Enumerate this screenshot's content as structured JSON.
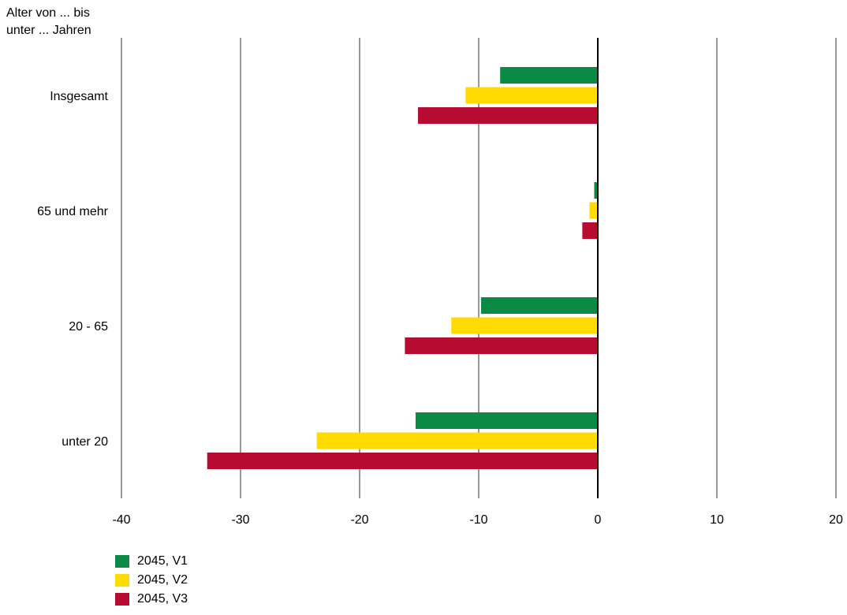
{
  "chart_data": {
    "type": "bar",
    "orientation": "horizontal",
    "ylabel_lines": [
      "Alter von ... bis",
      "unter ... Jahren"
    ],
    "categories": [
      "Insgesamt",
      "65 und mehr",
      "20 - 65",
      "unter 20"
    ],
    "x_ticks": [
      "-40",
      "-30",
      "-20",
      "-10",
      "0",
      "10",
      "20"
    ],
    "xlim": [
      -40,
      20
    ],
    "grid": true,
    "legend_position": "bottom-left",
    "series": [
      {
        "name": "2045, V1",
        "color": "#0a8a44",
        "values": [
          -8.2,
          -0.3,
          -9.8,
          -15.3
        ]
      },
      {
        "name": "2045, V2",
        "color": "#ffdb00",
        "values": [
          -11.1,
          -0.7,
          -12.3,
          -23.6
        ]
      },
      {
        "name": "2045, V3",
        "color": "#b80b32",
        "values": [
          -15.1,
          -1.3,
          -16.2,
          -32.8
        ]
      }
    ]
  }
}
